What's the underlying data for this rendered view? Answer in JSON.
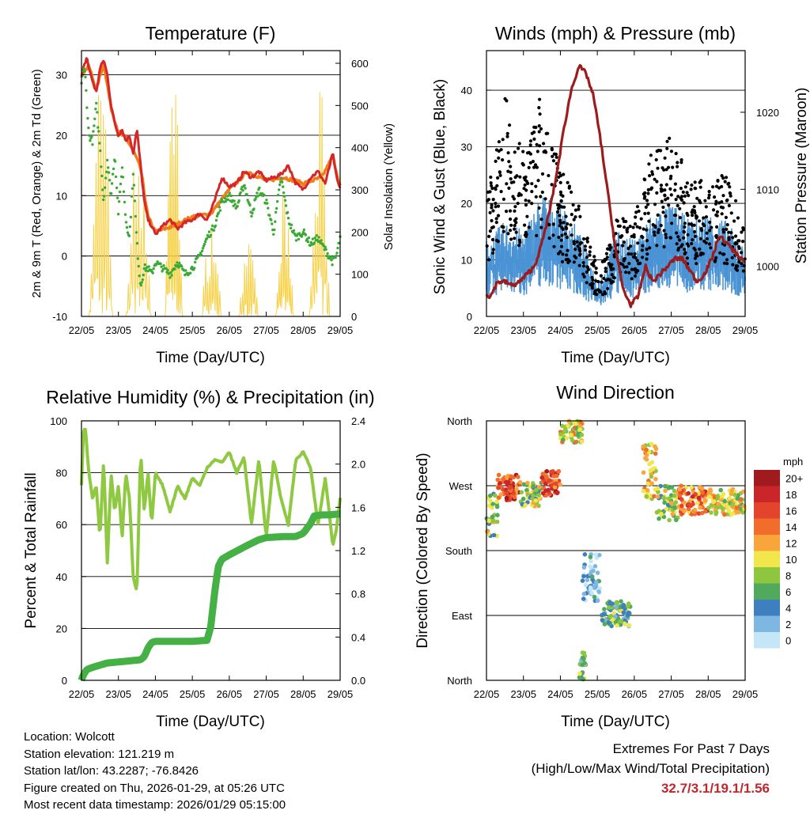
{
  "chart_data": [
    {
      "id": "temp",
      "type": "line",
      "title": "Temperature (F)",
      "xlabel": "Time (Day/UTC)",
      "ylabel": "2m & 9m T (Red, Orange) & 2m Td (Green)",
      "ylabel_right": "Solar Insolation (Yellow)",
      "x_tick_labels": [
        "22/05",
        "23/05",
        "24/05",
        "25/05",
        "26/05",
        "27/05",
        "28/05",
        "29/05"
      ],
      "ylim": [
        -10,
        34
      ],
      "yticks": [
        -10,
        0,
        10,
        20,
        30
      ],
      "ylim_right": [
        0,
        630
      ],
      "yticks_right": [
        0,
        100,
        200,
        300,
        400,
        500,
        600
      ],
      "grid_lines": [
        0,
        10,
        20,
        30
      ],
      "series": [
        {
          "name": "2m T",
          "color": "#d62728",
          "axis": "left",
          "style": "line",
          "x": [
            0,
            0.05,
            0.1,
            0.15,
            0.2,
            0.3,
            0.4,
            0.5,
            0.6,
            0.7,
            0.8,
            0.9,
            1.0,
            1.1,
            1.2,
            1.3,
            1.4,
            1.5,
            1.6,
            1.7,
            1.8,
            1.9,
            2.0,
            2.2,
            2.4,
            2.6,
            2.8,
            3.0,
            3.2,
            3.4,
            3.6,
            3.8,
            4.0,
            4.2,
            4.4,
            4.6,
            4.8,
            5.0,
            5.2,
            5.4,
            5.6,
            5.8,
            6.0,
            6.2,
            6.4,
            6.6,
            6.7,
            6.8,
            6.9,
            7.0
          ],
          "values": [
            29.5,
            31,
            32,
            33,
            31,
            29,
            27,
            31,
            32.5,
            30,
            25,
            22,
            20,
            21,
            19,
            20,
            17,
            21,
            15,
            9,
            6,
            5,
            3.5,
            5,
            6,
            4.5,
            5.5,
            6,
            7,
            6,
            9,
            13,
            11.5,
            12,
            14,
            13,
            14,
            12.5,
            13,
            13.5,
            15,
            12,
            11,
            13,
            14,
            12,
            14.5,
            17,
            13,
            11
          ]
        },
        {
          "name": "9m T",
          "color": "#f07d1a",
          "axis": "left",
          "style": "line",
          "x": [
            0,
            0.2,
            0.4,
            0.6,
            0.8,
            1.0,
            1.2,
            1.4,
            1.6,
            1.8,
            2.0,
            2.5,
            3.0,
            3.5,
            4.0,
            4.5,
            5.0,
            5.5,
            6.0,
            6.5,
            6.8,
            7.0
          ],
          "values": [
            30,
            31.5,
            27.5,
            32,
            24.5,
            20.5,
            19.5,
            17.5,
            14.5,
            6.5,
            4,
            5,
            6.5,
            7,
            11,
            14,
            12.5,
            13,
            12,
            13,
            16.5,
            11.5
          ]
        },
        {
          "name": "2m Td",
          "color": "#3aaa35",
          "axis": "left",
          "style": "dots",
          "x": [
            0,
            0.05,
            0.1,
            0.2,
            0.3,
            0.4,
            0.5,
            0.6,
            0.7,
            0.8,
            0.9,
            1.0,
            1.1,
            1.2,
            1.3,
            1.4,
            1.5,
            1.6,
            1.7,
            1.8,
            1.9,
            2.0,
            2.2,
            2.4,
            2.6,
            2.8,
            3.0,
            3.2,
            3.4,
            3.6,
            3.8,
            4.0,
            4.2,
            4.4,
            4.6,
            4.8,
            5.0,
            5.2,
            5.4,
            5.6,
            5.8,
            6.0,
            6.2,
            6.4,
            6.6,
            6.8,
            6.9,
            7.0
          ],
          "values": [
            29,
            31,
            30,
            20,
            19,
            25,
            18,
            9,
            16,
            10,
            17,
            7,
            15,
            6,
            3,
            14,
            2,
            -5,
            -2,
            -2,
            -3,
            -1,
            -2,
            -3,
            -1,
            -3,
            -2,
            0,
            3,
            5,
            9,
            10,
            8,
            12,
            7,
            11,
            9,
            4,
            13,
            6,
            3,
            4,
            2,
            3,
            1,
            -1,
            0,
            3
          ]
        },
        {
          "name": "Solar Insolation",
          "color": "#f7d148",
          "axis": "right",
          "style": "spiky",
          "days": [
            {
              "start": 0.2,
              "peak": 1.5,
              "width": 0.65,
              "value": 620
            },
            {
              "start": 1.2,
              "peak": 1.65,
              "width": 0.7,
              "value": 510
            },
            {
              "start": 2.25,
              "peak": 2.65,
              "width": 0.5,
              "value": 630
            },
            {
              "start": 3.25,
              "peak": 3.6,
              "width": 0.55,
              "value": 250
            },
            {
              "start": 4.25,
              "peak": 4.55,
              "width": 0.55,
              "value": 180
            },
            {
              "start": 5.25,
              "peak": 5.6,
              "width": 0.5,
              "value": 300
            },
            {
              "start": 6.15,
              "peak": 6.45,
              "width": 0.6,
              "value": 560
            }
          ]
        }
      ]
    },
    {
      "id": "wind",
      "type": "scatter",
      "title": "Winds (mph) & Pressure (mb)",
      "xlabel": "Time (Day/UTC)",
      "ylabel": "Sonic Wind & Gust (Blue, Black)",
      "ylabel_right": "Station Pressure (Maroon)",
      "x_tick_labels": [
        "22/05",
        "23/05",
        "24/05",
        "25/05",
        "26/05",
        "27/05",
        "28/05",
        "29/05"
      ],
      "ylim": [
        0,
        47
      ],
      "yticks": [
        0,
        10,
        20,
        30,
        40
      ],
      "ylim_right": [
        993.5,
        1028
      ],
      "yticks_right": [
        1000,
        1010,
        1020
      ],
      "grid_lines": [
        10,
        20,
        30,
        40
      ],
      "series": [
        {
          "name": "Sonic Wind",
          "color": "#4a93d4",
          "axis": "left",
          "style": "band",
          "x": [
            0,
            0.5,
            1,
            1.5,
            2,
            2.5,
            3,
            3.2,
            3.5,
            4,
            4.5,
            5,
            5.5,
            6,
            6.5,
            7
          ],
          "values": [
            8,
            10,
            9,
            13,
            12,
            9,
            4,
            5,
            9,
            8,
            11,
            12,
            10,
            11,
            10,
            7
          ]
        },
        {
          "name": "Gust",
          "color": "#000000",
          "axis": "left",
          "style": "dots",
          "x": [
            0,
            0.5,
            1,
            1.5,
            2,
            2.5,
            3,
            3.2,
            3.5,
            4,
            4.5,
            5,
            5.5,
            6,
            6.5,
            7
          ],
          "values": [
            15,
            27,
            20,
            28,
            18,
            14,
            6,
            7,
            12,
            12,
            21,
            23,
            16,
            18,
            17,
            12
          ]
        },
        {
          "name": "Station Pressure",
          "color": "#9b1c1c",
          "axis": "right",
          "style": "line",
          "x": [
            0,
            0.1,
            0.3,
            0.5,
            0.7,
            0.9,
            1.1,
            1.3,
            1.5,
            1.7,
            1.9,
            2.1,
            2.3,
            2.5,
            2.7,
            2.9,
            3.1,
            3.3,
            3.5,
            3.7,
            3.9,
            4.1,
            4.3,
            4.5,
            4.7,
            4.9,
            5.1,
            5.3,
            5.5,
            5.7,
            5.9,
            6.1,
            6.3,
            6.5,
            6.7,
            6.9,
            7.0
          ],
          "values": [
            996.5,
            996,
            998,
            998,
            997.5,
            998,
            999,
            1000,
            1003,
            1007,
            1012,
            1018,
            1023,
            1026,
            1025,
            1022,
            1016,
            1009,
            1002,
            997,
            995,
            996,
            1000,
            998,
            999,
            1000,
            1001,
            1001,
            999.5,
            998,
            999,
            1001,
            1004,
            1003,
            1002,
            1001,
            1000.5
          ]
        }
      ]
    },
    {
      "id": "rh",
      "type": "line",
      "title": "Relative Humidity (%) & Precipitation (in)",
      "xlabel": "Time (Day/UTC)",
      "ylabel": "Percent & Total Rainfall",
      "x_tick_labels": [
        "22/05",
        "23/05",
        "24/05",
        "25/05",
        "26/05",
        "27/05",
        "28/05",
        "29/05"
      ],
      "ylim": [
        0,
        100
      ],
      "yticks": [
        0,
        20,
        40,
        60,
        80,
        100
      ],
      "ylim_right": [
        0,
        2.4
      ],
      "yticks_right": [
        "0.0",
        "0.4",
        "0.8",
        "1.2",
        "1.6",
        "2.0",
        "2.4"
      ],
      "grid_lines": [
        20,
        40,
        60,
        80
      ],
      "series": [
        {
          "name": "Relative Humidity",
          "color": "#8fc941",
          "axis": "left",
          "style": "line",
          "x": [
            0,
            0.05,
            0.1,
            0.2,
            0.3,
            0.4,
            0.5,
            0.6,
            0.7,
            0.8,
            0.9,
            1.0,
            1.1,
            1.2,
            1.3,
            1.4,
            1.5,
            1.6,
            1.7,
            1.8,
            1.9,
            2.0,
            2.2,
            2.4,
            2.6,
            2.8,
            3.0,
            3.2,
            3.4,
            3.6,
            3.8,
            4.0,
            4.2,
            4.4,
            4.6,
            4.8,
            5.0,
            5.2,
            5.4,
            5.6,
            5.8,
            6.0,
            6.2,
            6.4,
            6.6,
            6.8,
            6.9,
            7.0
          ],
          "values": [
            75,
            95,
            98,
            80,
            70,
            75,
            55,
            85,
            45,
            80,
            65,
            75,
            55,
            80,
            70,
            40,
            34,
            88,
            65,
            80,
            60,
            80,
            75,
            65,
            75,
            70,
            78,
            75,
            82,
            85,
            84,
            88,
            80,
            86,
            60,
            85,
            55,
            85,
            70,
            60,
            85,
            88,
            82,
            60,
            78,
            52,
            58,
            70
          ]
        },
        {
          "name": "Total Precipitation",
          "color": "#45b043",
          "axis": "right",
          "style": "thick",
          "x": [
            0,
            0.05,
            0.15,
            0.3,
            0.5,
            0.7,
            1.0,
            1.3,
            1.6,
            1.7,
            1.8,
            1.9,
            2.0,
            2.5,
            3.0,
            3.4,
            3.5,
            3.6,
            3.7,
            3.8,
            4.0,
            4.5,
            4.8,
            5.0,
            5.5,
            5.8,
            6.0,
            6.2,
            6.3,
            6.5,
            6.7,
            7.0
          ],
          "values": [
            0.0,
            0.05,
            0.1,
            0.12,
            0.14,
            0.16,
            0.17,
            0.18,
            0.19,
            0.22,
            0.3,
            0.35,
            0.36,
            0.36,
            0.36,
            0.37,
            0.5,
            0.8,
            1.05,
            1.12,
            1.16,
            1.25,
            1.3,
            1.32,
            1.33,
            1.33,
            1.36,
            1.45,
            1.52,
            1.53,
            1.53,
            1.54
          ]
        }
      ]
    },
    {
      "id": "dir",
      "type": "scatter",
      "title": "Wind Direction",
      "xlabel": "Time (Day/UTC)",
      "ylabel": "Direction (Colored By Speed)",
      "x_tick_labels": [
        "22/05",
        "23/05",
        "24/05",
        "25/05",
        "26/05",
        "27/05",
        "28/05",
        "29/05"
      ],
      "y_tick_labels": [
        "North",
        "East",
        "South",
        "West",
        "North"
      ],
      "grid_lines": [
        "East",
        "South",
        "West"
      ],
      "colorbar": {
        "unit": "mph",
        "labels": [
          "20+",
          "18",
          "16",
          "14",
          "12",
          "10",
          "8",
          "6",
          "4",
          "2",
          "0"
        ],
        "colors": [
          "#a11a1d",
          "#c9252b",
          "#e4432c",
          "#f26d2b",
          "#f9a53c",
          "#f1e74c",
          "#8fc63f",
          "#4faa5d",
          "#3e7fbf",
          "#7db7e2",
          "#c4e6f7"
        ]
      },
      "clusters": [
        {
          "x0": 0.0,
          "x1": 0.3,
          "d0": 200,
          "d1": 260,
          "speed": 8
        },
        {
          "x0": 0.3,
          "x1": 0.9,
          "d0": 250,
          "d1": 285,
          "speed": 16
        },
        {
          "x0": 0.9,
          "x1": 1.5,
          "d0": 240,
          "d1": 275,
          "speed": 8
        },
        {
          "x0": 1.5,
          "x1": 2.0,
          "d0": 255,
          "d1": 290,
          "speed": 16
        },
        {
          "x0": 2.0,
          "x1": 2.6,
          "d0": 330,
          "d1": 360,
          "speed": 10
        },
        {
          "x0": 2.5,
          "x1": 2.7,
          "d0": 0,
          "d1": 40,
          "speed": 6
        },
        {
          "x0": 2.6,
          "x1": 3.1,
          "d0": 110,
          "d1": 175,
          "speed": 2
        },
        {
          "x0": 3.1,
          "x1": 3.9,
          "d0": 75,
          "d1": 110,
          "speed": 6
        },
        {
          "x0": 4.2,
          "x1": 4.6,
          "d0": 250,
          "d1": 330,
          "speed": 10
        },
        {
          "x0": 4.6,
          "x1": 5.2,
          "d0": 220,
          "d1": 270,
          "speed": 8
        },
        {
          "x0": 5.2,
          "x1": 6.0,
          "d0": 230,
          "d1": 270,
          "speed": 14
        },
        {
          "x0": 6.0,
          "x1": 7.0,
          "d0": 230,
          "d1": 265,
          "speed": 10
        }
      ]
    }
  ],
  "info": {
    "location": "Location: Wolcott",
    "elevation": "Station elevation: 121.219 m",
    "latlon": "Station lat/lon: 43.2287; -76.8426",
    "created": "Figure created on Thu, 2026-01-29, at 05:26 UTC",
    "recent": "Most recent data timestamp: 2026/01/29 05:15:00"
  },
  "extremes": {
    "title": "Extremes For Past 7 Days",
    "subtitle": "(High/Low/Max Wind/Total Precipitation)",
    "values": "32.7/3.1/19.1/1.56"
  }
}
